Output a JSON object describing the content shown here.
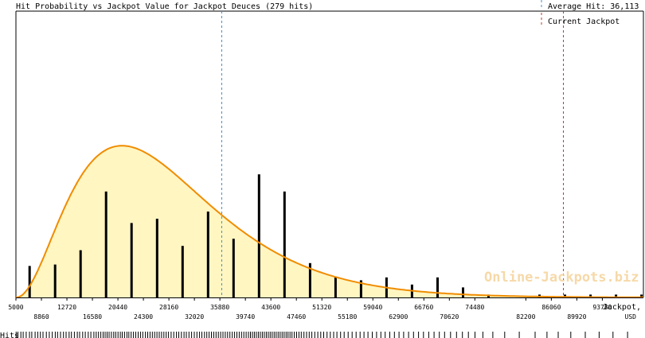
{
  "chart_data": {
    "type": "bar",
    "title": "Hit Probability vs Jackpot Value for Jackpot Deuces (279 hits)",
    "xlabel": "Jackpot,",
    "xunit": "USD",
    "hits_label": "Hits",
    "watermark": "Online-Jackpots.biz",
    "xlim": [
      5000,
      100000
    ],
    "ticks_upper": [
      5000,
      12720,
      20440,
      28160,
      35880,
      43600,
      51320,
      59040,
      66760,
      74480,
      86060,
      93780
    ],
    "ticks_lower": [
      8860,
      16580,
      24300,
      32020,
      39740,
      47460,
      55180,
      62900,
      70620,
      82200,
      89920
    ],
    "bars": [
      {
        "x": 7070,
        "y": 0.22
      },
      {
        "x": 10930,
        "y": 0.23
      },
      {
        "x": 14790,
        "y": 0.33
      },
      {
        "x": 18650,
        "y": 0.74
      },
      {
        "x": 22510,
        "y": 0.52
      },
      {
        "x": 26370,
        "y": 0.55
      },
      {
        "x": 30230,
        "y": 0.36
      },
      {
        "x": 34090,
        "y": 0.6
      },
      {
        "x": 37950,
        "y": 0.41
      },
      {
        "x": 41810,
        "y": 0.86
      },
      {
        "x": 45670,
        "y": 0.74
      },
      {
        "x": 49530,
        "y": 0.24
      },
      {
        "x": 53390,
        "y": 0.14
      },
      {
        "x": 57250,
        "y": 0.12
      },
      {
        "x": 61110,
        "y": 0.14
      },
      {
        "x": 64970,
        "y": 0.09
      },
      {
        "x": 68830,
        "y": 0.14
      },
      {
        "x": 72690,
        "y": 0.07
      },
      {
        "x": 76550,
        "y": 0.02
      },
      {
        "x": 84270,
        "y": 0.02
      },
      {
        "x": 88130,
        "y": 0.02
      },
      {
        "x": 91990,
        "y": 0.02
      },
      {
        "x": 95850,
        "y": 0.02
      },
      {
        "x": 99710,
        "y": 0.02
      }
    ],
    "curve": {
      "shape": 3.2,
      "scale": 7300,
      "offset": 5000,
      "peak": 1.0,
      "color": "#f08c00",
      "fill": "#fff6c2"
    },
    "markers": [
      {
        "label": "Average Hit: 36,113",
        "x": 36113,
        "color": "#4a8fc4"
      },
      {
        "label": "Current Jackpot",
        "x": 87800,
        "color": "#c0392b"
      }
    ],
    "hit_marks": [
      5040,
      5300,
      5750,
      6100,
      6550,
      7050,
      7400,
      7900,
      8300,
      8700,
      9100,
      9600,
      10050,
      10500,
      10950,
      11300,
      11750,
      12200,
      12600,
      13050,
      13400,
      13850,
      14300,
      14650,
      15100,
      15500,
      15950,
      16350,
      16800,
      17150,
      17500,
      17850,
      18200,
      18500,
      18800,
      19100,
      19450,
      19800,
      20100,
      20450,
      20800,
      21100,
      21450,
      21800,
      22100,
      22450,
      22800,
      23150,
      23500,
      23850,
      24200,
      24600,
      24950,
      25300,
      25650,
      26000,
      26350,
      26700,
      27050,
      27400,
      27750,
      28100,
      28500,
      28900,
      29300,
      29650,
      30050,
      30450,
      30800,
      31200,
      31600,
      32000,
      32400,
      32800,
      33150,
      33550,
      33900,
      34250,
      34600,
      34950,
      35300,
      35650,
      36000,
      36350,
      36700,
      37050,
      37400,
      37750,
      38100,
      38450,
      38800,
      39150,
      39500,
      39850,
      40200,
      40500,
      40800,
      41100,
      41400,
      41700,
      42000,
      42300,
      42600,
      42900,
      43200,
      43500,
      43800,
      44100,
      44400,
      44700,
      45000,
      45300,
      45600,
      45900,
      46200,
      46500,
      46800,
      47150,
      47500,
      47850,
      48200,
      48600,
      49000,
      49400,
      49800,
      50250,
      50700,
      51150,
      51600,
      52100,
      52600,
      53100,
      53600,
      54150,
      54700,
      55300,
      55900,
      56500,
      57100,
      57700,
      58300,
      58950,
      59600,
      60250,
      60900,
      61600,
      62300,
      63000,
      63700,
      64450,
      65200,
      65950,
      66700,
      67500,
      68300,
      69100,
      69900,
      70800,
      71700,
      72600,
      73500,
      74500,
      75700,
      77200,
      79000,
      81200,
      83600,
      85400,
      87100,
      89000,
      91200,
      93300,
      95400,
      97600
    ],
    "colors": {
      "bars": "#000000",
      "axis": "#000000"
    }
  }
}
